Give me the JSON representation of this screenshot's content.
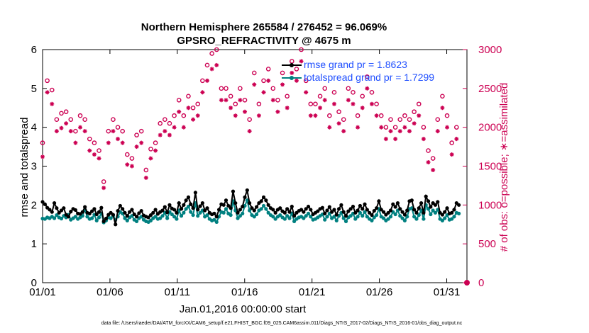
{
  "chart_data": {
    "type": "line",
    "title_line1": "Northern Hemisphere 265584 / 276452 = 96.069%",
    "title_line2": "GPSRO_REFRACTIVITY @ 4675 m",
    "xlabel": "Jan.01,2016 00:00:00 start",
    "ylabel_left": "rmse and totalspread",
    "ylabel_right": "# of obs: o=possible; ∗=assimilated",
    "x_ticks": [
      "01/01",
      "01/06",
      "01/11",
      "01/16",
      "01/21",
      "01/26",
      "01/31"
    ],
    "x_tick_days": [
      0,
      5,
      10,
      15,
      20,
      25,
      30
    ],
    "xlim": [
      0,
      31.5
    ],
    "ylim_left": [
      0,
      6
    ],
    "y_ticks_left": [
      0,
      1,
      2,
      3,
      4,
      5,
      6
    ],
    "ylim_right": [
      0,
      3000
    ],
    "y_ticks_right": [
      0,
      500,
      1000,
      1500,
      2000,
      2500,
      3000
    ],
    "colors": {
      "rmse": "#000000",
      "spread": "#008080",
      "obs": "#cc0052",
      "legend_text": "#1f4fff"
    },
    "series": [
      {
        "name": "rmse grand pr = 1.8623",
        "values": [
          2.08,
          2.02,
          1.93,
          1.88,
          1.82,
          2.05,
          1.92,
          1.8,
          1.86,
          1.92,
          1.75,
          1.7,
          1.83,
          1.9,
          1.87,
          1.78,
          1.77,
          1.82,
          1.95,
          1.8,
          1.78,
          1.84,
          1.9,
          1.76,
          1.82,
          1.93,
          1.58,
          1.65,
          1.75,
          1.8,
          1.75,
          1.5,
          1.85,
          1.98,
          1.9,
          1.8,
          1.72,
          1.82,
          1.88,
          1.76,
          1.7,
          1.79,
          1.85,
          1.73,
          1.7,
          1.68,
          1.74,
          1.8,
          1.88,
          1.77,
          1.82,
          1.86,
          1.95,
          1.81,
          2.0,
          1.91,
          1.88,
          1.8,
          2.05,
          1.9,
          2.0,
          2.12,
          2.2,
          2.02,
          1.92,
          2.32,
          1.88,
          1.97,
          2.05,
          1.86,
          1.92,
          1.8,
          1.76,
          1.78,
          1.7,
          1.88,
          2.02,
          2.0,
          2.12,
          1.98,
          1.92,
          2.35,
          2.05,
          1.8,
          1.88,
          1.96,
          2.2,
          2.38,
          2.05,
          1.92,
          1.86,
          1.95,
          2.05,
          2.1,
          2.2,
          2.12,
          2.0,
          1.92,
          1.88,
          1.8,
          1.88,
          1.92,
          1.84,
          1.8,
          1.9,
          1.82,
          1.96,
          1.72,
          1.8,
          1.85,
          1.88,
          1.82,
          1.9,
          1.96,
          1.88,
          1.76,
          1.8,
          1.84,
          1.9,
          1.93,
          1.78,
          1.86,
          1.95,
          1.82,
          1.88,
          1.75,
          1.9,
          2.0,
          1.82,
          1.72,
          1.84,
          1.9,
          1.96,
          1.8,
          1.86,
          1.98,
          1.9,
          2.02,
          1.88,
          1.8,
          1.74,
          1.85,
          1.92,
          2.1,
          1.88,
          1.82,
          1.75,
          1.8,
          1.86,
          2.02,
          1.95,
          2.05,
          1.9,
          1.82,
          1.75,
          1.86,
          2.1,
          2.12,
          1.88,
          1.8,
          1.92,
          2.05,
          1.8,
          2.22,
          2.1,
          1.95,
          2.05,
          2.0,
          2.08,
          1.8,
          1.75,
          1.82,
          1.92,
          1.78,
          1.8,
          1.88,
          2.05,
          2.0
        ]
      },
      {
        "name": "totalspread grand pr = 1.7299",
        "values": [
          1.65,
          1.64,
          1.68,
          1.66,
          1.7,
          1.66,
          1.74,
          1.68,
          1.65,
          1.72,
          1.68,
          1.75,
          1.62,
          1.66,
          1.7,
          1.64,
          1.68,
          1.72,
          1.88,
          1.7,
          1.64,
          1.66,
          1.75,
          1.6,
          1.68,
          1.78,
          1.55,
          1.6,
          1.68,
          1.66,
          1.72,
          1.62,
          1.7,
          1.82,
          1.78,
          1.66,
          1.6,
          1.68,
          1.72,
          1.62,
          1.58,
          1.66,
          1.7,
          1.62,
          1.58,
          1.56,
          1.6,
          1.66,
          1.7,
          1.64,
          1.66,
          1.72,
          1.8,
          1.66,
          1.82,
          1.76,
          1.7,
          1.64,
          1.86,
          1.72,
          1.8,
          1.9,
          1.96,
          1.82,
          1.74,
          2.05,
          1.72,
          1.8,
          1.86,
          1.7,
          1.74,
          1.64,
          1.6,
          1.62,
          1.56,
          1.7,
          1.82,
          1.8,
          1.9,
          1.78,
          1.74,
          2.1,
          1.86,
          1.66,
          1.72,
          1.78,
          1.98,
          2.12,
          1.86,
          1.74,
          1.7,
          1.76,
          1.86,
          1.9,
          1.98,
          1.9,
          1.8,
          1.74,
          1.7,
          1.64,
          1.7,
          1.74,
          1.68,
          1.64,
          1.72,
          1.66,
          1.78,
          1.58,
          1.64,
          1.68,
          1.7,
          1.66,
          1.72,
          1.78,
          1.7,
          1.62,
          1.64,
          1.68,
          1.72,
          1.76,
          1.62,
          1.7,
          1.78,
          1.66,
          1.7,
          1.6,
          1.72,
          1.8,
          1.66,
          1.58,
          1.68,
          1.72,
          1.78,
          1.64,
          1.7,
          1.8,
          1.72,
          1.82,
          1.7,
          1.64,
          1.6,
          1.68,
          1.74,
          1.9,
          1.7,
          1.66,
          1.6,
          1.64,
          1.7,
          1.82,
          1.76,
          1.86,
          1.72,
          1.66,
          1.6,
          1.7,
          1.9,
          1.92,
          1.7,
          1.64,
          1.74,
          1.86,
          1.64,
          2.0,
          1.9,
          1.76,
          1.86,
          1.8,
          1.88,
          1.64,
          1.6,
          1.66,
          1.74,
          1.62,
          1.64,
          1.7,
          1.8,
          1.78
        ]
      },
      {
        "name": "obs possible",
        "values": [
          1800,
          2150,
          2600,
          2550,
          2480,
          2400,
          2100,
          2200,
          2180,
          2050,
          2200,
          2050,
          2100,
          1920,
          1950,
          2000,
          2150,
          2200,
          2100,
          1700,
          1850,
          1950,
          1800,
          1680,
          1700,
          1650,
          1300,
          1580,
          1950,
          2250,
          2100,
          2300,
          2000,
          2010,
          1950,
          1800,
          1650,
          1500,
          1600,
          1850,
          1900,
          1750,
          1950,
          1650,
          1450,
          1350,
          1720,
          1700,
          1800,
          1900,
          2050,
          1950,
          2100,
          1900,
          2050,
          2200,
          2150,
          2250,
          2350,
          2200,
          2150,
          2000,
          2400,
          2200,
          2250,
          2100,
          2300,
          2500,
          2600,
          2400,
          2800,
          2700,
          2950,
          2900,
          3000,
          2750,
          2500,
          2450,
          2500,
          2200,
          2400,
          2200,
          2300,
          2400,
          2500,
          2450,
          2350,
          2200,
          2100,
          2050,
          2700,
          2700,
          2300,
          2350,
          2600,
          2800,
          2750,
          2650,
          2500,
          2450,
          2350,
          2300,
          2700,
          2900,
          2400,
          2550,
          2850,
          2600,
          2750,
          2800,
          3000,
          2450,
          2600,
          2100,
          2300,
          2150,
          2300,
          2000,
          2400,
          2600,
          2500,
          2350,
          2150,
          2000,
          2450,
          2400,
          2200,
          1950,
          2100,
          2200,
          2500,
          2300,
          2450,
          2250,
          2150,
          2000,
          2400,
          2700,
          2650,
          2500,
          2450,
          2350,
          2300,
          2200,
          2150,
          1900,
          2000,
          1950,
          2100,
          2050,
          2000,
          2150,
          2100,
          2200,
          2150,
          2000,
          2100,
          2050,
          2200,
          2250,
          2300,
          2150,
          2000,
          2100,
          1700,
          1750,
          1600,
          2000,
          2100,
          2300,
          2400,
          2450,
          2150,
          1500,
          1800,
          2050,
          2000
        ]
      },
      {
        "name": "obs assimilated",
        "values": [
          1620,
          2000,
          2450,
          2400,
          2300,
          2200,
          1950,
          2000,
          1990,
          1850,
          2050,
          1900,
          1950,
          1760,
          1800,
          1850,
          2000,
          2050,
          1950,
          1580,
          1700,
          1800,
          1650,
          1550,
          1600,
          1570,
          1220,
          1480,
          1800,
          2100,
          1950,
          2150,
          1850,
          1880,
          1800,
          1650,
          1520,
          1400,
          1500,
          1700,
          1750,
          1620,
          1800,
          1500,
          1350,
          1280,
          1600,
          1600,
          1700,
          1760,
          1900,
          1800,
          1950,
          1760,
          1900,
          2050,
          2000,
          2100,
          2200,
          2050,
          2000,
          1850,
          2250,
          2050,
          2100,
          1950,
          2150,
          2350,
          2450,
          2200,
          2600,
          2500,
          2750,
          2700,
          2800,
          2600,
          2350,
          2300,
          2350,
          2050,
          2250,
          2050,
          2150,
          2250,
          2350,
          2300,
          2200,
          2050,
          1950,
          1900,
          2550,
          2550,
          2150,
          2200,
          2450,
          2650,
          2600,
          2500,
          2350,
          2300,
          2200,
          2150,
          2550,
          2750,
          2250,
          2400,
          2700,
          2450,
          2600,
          2650,
          2850,
          2300,
          2450,
          1950,
          2150,
          2000,
          2150,
          1850,
          2250,
          2450,
          2350,
          2200,
          2000,
          1850,
          2300,
          2250,
          2050,
          1800,
          1950,
          2050,
          2350,
          2150,
          2300,
          2100,
          2000,
          1850,
          2250,
          2550,
          2500,
          2350,
          2300,
          2200,
          2150,
          2050,
          2000,
          1750,
          1850,
          1800,
          1950,
          1900,
          1850,
          2000,
          1950,
          2050,
          2000,
          1850,
          1950,
          1900,
          2050,
          2100,
          2150,
          2000,
          1850,
          1950,
          1550,
          1600,
          1450,
          1850,
          1950,
          2150,
          2250,
          2300,
          2000,
          1350,
          1650,
          1900,
          1850
        ]
      }
    ],
    "legend": [
      "rmse grand pr = 1.8623",
      "totalspread grand pr = 1.7299"
    ],
    "legend_position": "top-right",
    "last_point_obs": 0
  },
  "footer": "data file: /Users/raeder/DAI/ATM_forcXX/CAM6_setup/f.e21.FHIST_BGC.f09_025.CAM6assim.011/Diags_NTrS_2017-02/Diags_NTrS_2016-01/obs_diag_output.nc"
}
